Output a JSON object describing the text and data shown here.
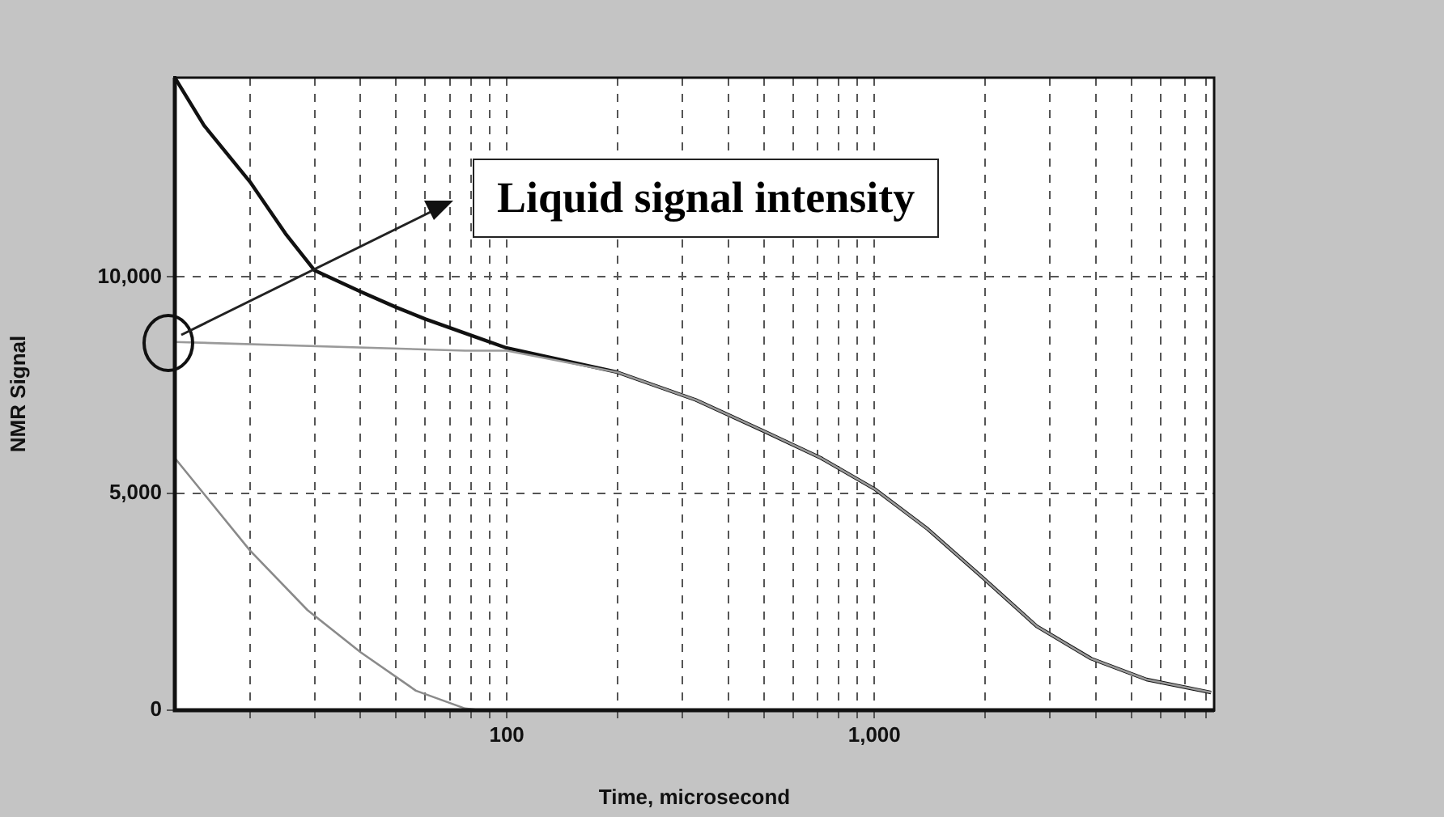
{
  "chart_data": {
    "type": "line",
    "xlabel": "Time, microsecond",
    "ylabel": "NMR Signal",
    "log": "x",
    "grid": true,
    "xlim": [
      12.5,
      8400
    ],
    "xticks": [
      {
        "value": 20,
        "label": null
      },
      {
        "value": 30,
        "label": null
      },
      {
        "value": 40,
        "label": null
      },
      {
        "value": 50,
        "label": null
      },
      {
        "value": 60,
        "label": null
      },
      {
        "value": 70,
        "label": null
      },
      {
        "value": 80,
        "label": null
      },
      {
        "value": 90,
        "label": null
      },
      {
        "value": 100,
        "label": "100"
      },
      {
        "value": 200,
        "label": null
      },
      {
        "value": 300,
        "label": null
      },
      {
        "value": 400,
        "label": null
      },
      {
        "value": 500,
        "label": null
      },
      {
        "value": 600,
        "label": null
      },
      {
        "value": 700,
        "label": null
      },
      {
        "value": 800,
        "label": null
      },
      {
        "value": 900,
        "label": null
      },
      {
        "value": 1000,
        "label": "1,000"
      },
      {
        "value": 2000,
        "label": null
      },
      {
        "value": 3000,
        "label": null
      },
      {
        "value": 4000,
        "label": null
      },
      {
        "value": 5000,
        "label": null
      },
      {
        "value": 6000,
        "label": null
      },
      {
        "value": 7000,
        "label": null
      },
      {
        "value": 8000,
        "label": null
      }
    ],
    "ylim": [
      0,
      14600
    ],
    "yticks": [
      0,
      {
        "value": 5000,
        "label": "5,000"
      },
      {
        "value": 10000,
        "label": "10,000"
      }
    ],
    "annotations": [
      "Liquid signal intensity"
    ],
    "series": [
      {
        "color": "#9a9a9a",
        "x": [
          12.5,
          77,
          100,
          200,
          327,
          507,
          716,
          1000,
          1397,
          1972,
          2763,
          3890,
          5500,
          8240
        ],
        "values": [
          8500,
          8300,
          8300,
          7800,
          7160,
          6420,
          5820,
          5110,
          4180,
          3060,
          1940,
          1190,
          710,
          410
        ]
      },
      {
        "color": "#8a8a8a",
        "x": [
          12.5,
          20,
          28.7,
          40,
          56.6,
          77,
          85
        ],
        "values": [
          5820,
          3690,
          2310,
          1340,
          450,
          40,
          0
        ]
      },
      {
        "color": "#111111",
        "x": [
          12.5,
          15,
          20,
          25,
          30,
          40,
          50,
          60,
          80,
          100,
          200,
          327,
          507,
          716,
          1000,
          1397,
          1972,
          2763,
          3890,
          5500,
          8240
        ],
        "values": [
          14600,
          13500,
          12200,
          11000,
          10150,
          9660,
          9300,
          9030,
          8650,
          8360,
          7800,
          7160,
          6420,
          5820,
          5110,
          4180,
          3060,
          1940,
          1190,
          710,
          410
        ]
      }
    ]
  }
}
